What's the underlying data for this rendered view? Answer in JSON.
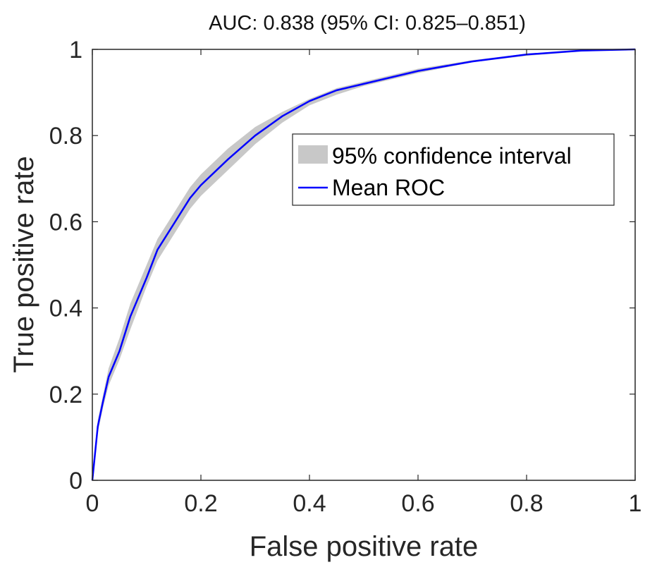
{
  "chart_data": {
    "type": "line",
    "title": "AUC: 0.838 (95% CI: 0.825–0.851)",
    "xlabel": "False positive rate",
    "ylabel": "True positive rate",
    "xlim": [
      0,
      1
    ],
    "ylim": [
      0,
      1
    ],
    "x_ticks": [
      {
        "value": 0,
        "label": "0"
      },
      {
        "value": 0.2,
        "label": "0.2"
      },
      {
        "value": 0.4,
        "label": "0.4"
      },
      {
        "value": 0.6,
        "label": "0.6"
      },
      {
        "value": 0.8,
        "label": "0.8"
      },
      {
        "value": 1,
        "label": "1"
      }
    ],
    "y_ticks": [
      {
        "value": 0,
        "label": "0"
      },
      {
        "value": 0.2,
        "label": "0.2"
      },
      {
        "value": 0.4,
        "label": "0.4"
      },
      {
        "value": 0.6,
        "label": "0.6"
      },
      {
        "value": 0.8,
        "label": "0.8"
      },
      {
        "value": 1,
        "label": "1"
      }
    ],
    "grid": false,
    "legend_position": "upper-right",
    "series": [
      {
        "name": "95% confidence interval",
        "kind": "band",
        "color": "#c8c8c8",
        "x": [
          0,
          0.01,
          0.02,
          0.03,
          0.05,
          0.07,
          0.1,
          0.12,
          0.15,
          0.18,
          0.2,
          0.25,
          0.3,
          0.35,
          0.4,
          0.45,
          0.5,
          0.6,
          0.7,
          0.8,
          0.9,
          1
        ],
        "lower": [
          0,
          0.11,
          0.17,
          0.22,
          0.28,
          0.35,
          0.45,
          0.51,
          0.57,
          0.63,
          0.66,
          0.72,
          0.78,
          0.83,
          0.87,
          0.895,
          0.915,
          0.945,
          0.97,
          0.985,
          0.995,
          1
        ],
        "upper": [
          0,
          0.14,
          0.2,
          0.26,
          0.33,
          0.41,
          0.5,
          0.56,
          0.62,
          0.68,
          0.71,
          0.77,
          0.82,
          0.855,
          0.885,
          0.91,
          0.925,
          0.955,
          0.975,
          0.99,
          0.998,
          1
        ]
      },
      {
        "name": "Mean ROC",
        "kind": "line",
        "color": "#0000ff",
        "x": [
          0,
          0.01,
          0.02,
          0.03,
          0.05,
          0.07,
          0.1,
          0.12,
          0.15,
          0.18,
          0.2,
          0.25,
          0.3,
          0.35,
          0.4,
          0.45,
          0.5,
          0.6,
          0.7,
          0.8,
          0.9,
          1
        ],
        "y": [
          0,
          0.125,
          0.185,
          0.24,
          0.3,
          0.38,
          0.47,
          0.535,
          0.595,
          0.655,
          0.685,
          0.745,
          0.8,
          0.845,
          0.88,
          0.905,
          0.92,
          0.95,
          0.972,
          0.988,
          0.997,
          1
        ]
      }
    ]
  }
}
